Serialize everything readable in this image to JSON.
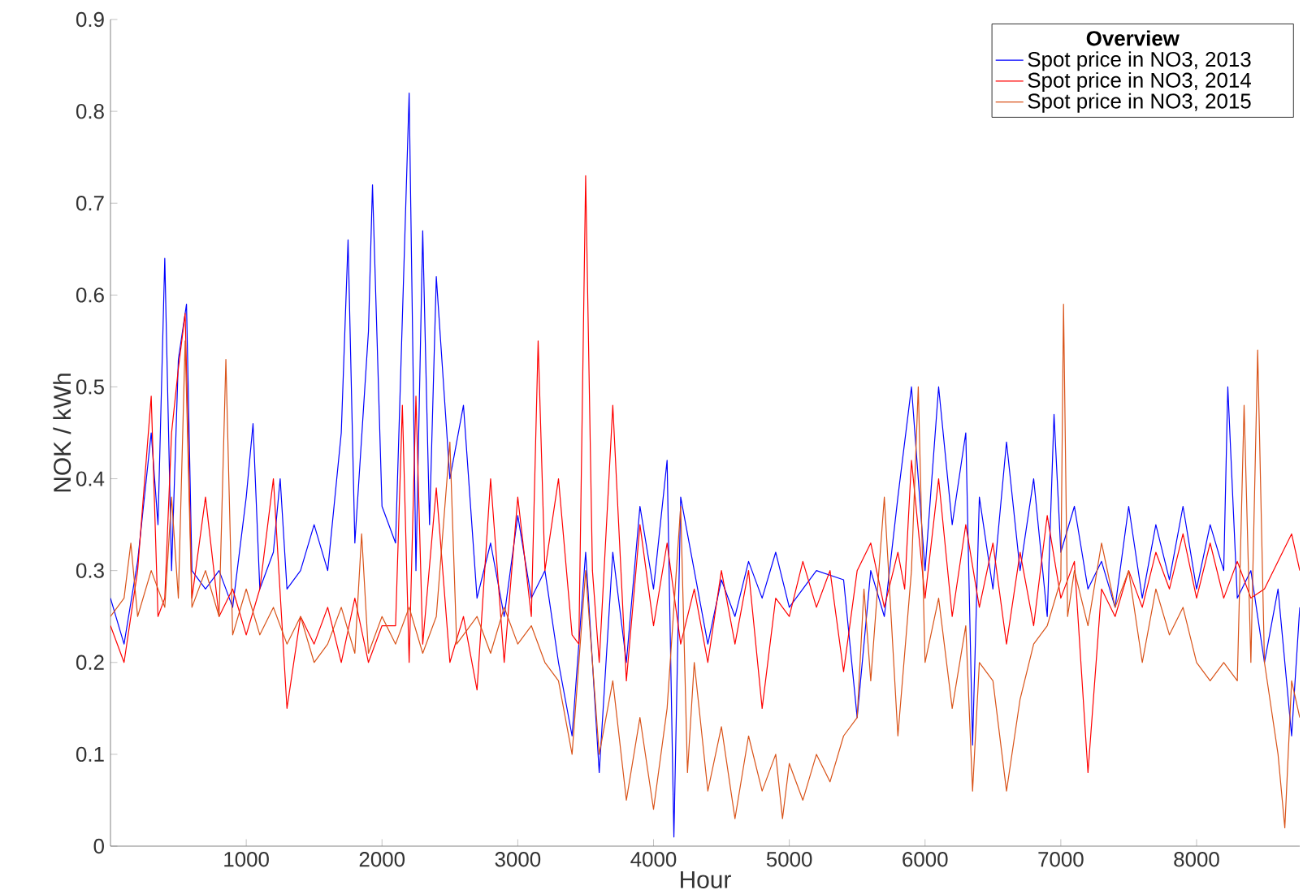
{
  "chart_data": {
    "type": "line",
    "xlabel": "Hour",
    "ylabel": "NOK / kWh",
    "legend_title": "Overview",
    "legend": "top right",
    "grid": false,
    "marker": "none",
    "line_style": "solid",
    "xlim": [
      0,
      8760
    ],
    "ylim": [
      0,
      0.9
    ],
    "xticks": [
      1000,
      2000,
      3000,
      4000,
      5000,
      6000,
      7000,
      8000
    ],
    "yticks": [
      0,
      0.1,
      0.2,
      0.3,
      0.4,
      0.5,
      0.6,
      0.7,
      0.8,
      0.9
    ],
    "series": [
      {
        "name": "Spot price in NO3, 2013",
        "color": "#0000ff",
        "x": [
          0,
          100,
          200,
          300,
          350,
          400,
          450,
          500,
          560,
          600,
          700,
          800,
          900,
          1000,
          1050,
          1100,
          1200,
          1250,
          1300,
          1400,
          1500,
          1600,
          1700,
          1750,
          1800,
          1900,
          1930,
          2000,
          2100,
          2200,
          2250,
          2300,
          2350,
          2400,
          2500,
          2600,
          2700,
          2800,
          2900,
          3000,
          3100,
          3200,
          3300,
          3400,
          3500,
          3600,
          3700,
          3800,
          3900,
          4000,
          4100,
          4150,
          4200,
          4300,
          4400,
          4500,
          4600,
          4700,
          4800,
          4900,
          5000,
          5200,
          5400,
          5500,
          5600,
          5700,
          5800,
          5900,
          6000,
          6100,
          6200,
          6300,
          6350,
          6400,
          6500,
          6600,
          6700,
          6800,
          6900,
          6950,
          7000,
          7100,
          7200,
          7300,
          7400,
          7500,
          7600,
          7700,
          7800,
          7900,
          8000,
          8100,
          8200,
          8230,
          8300,
          8400,
          8500,
          8600,
          8700,
          8760
        ],
        "values": [
          0.27,
          0.22,
          0.31,
          0.45,
          0.35,
          0.64,
          0.3,
          0.53,
          0.59,
          0.3,
          0.28,
          0.3,
          0.26,
          0.38,
          0.46,
          0.28,
          0.32,
          0.4,
          0.28,
          0.3,
          0.35,
          0.3,
          0.45,
          0.66,
          0.33,
          0.56,
          0.72,
          0.37,
          0.33,
          0.82,
          0.3,
          0.67,
          0.35,
          0.62,
          0.4,
          0.48,
          0.27,
          0.33,
          0.25,
          0.36,
          0.27,
          0.3,
          0.2,
          0.12,
          0.32,
          0.08,
          0.32,
          0.2,
          0.37,
          0.28,
          0.42,
          0.01,
          0.38,
          0.3,
          0.22,
          0.29,
          0.25,
          0.31,
          0.27,
          0.32,
          0.26,
          0.3,
          0.29,
          0.14,
          0.3,
          0.25,
          0.38,
          0.5,
          0.3,
          0.5,
          0.35,
          0.45,
          0.11,
          0.38,
          0.28,
          0.44,
          0.3,
          0.4,
          0.25,
          0.47,
          0.32,
          0.37,
          0.28,
          0.31,
          0.26,
          0.37,
          0.27,
          0.35,
          0.29,
          0.37,
          0.28,
          0.35,
          0.3,
          0.5,
          0.27,
          0.3,
          0.2,
          0.28,
          0.12,
          0.26
        ]
      },
      {
        "name": "Spot price in NO3, 2014",
        "color": "#ff0000",
        "x": [
          0,
          100,
          200,
          300,
          350,
          400,
          450,
          500,
          550,
          600,
          700,
          800,
          900,
          1000,
          1100,
          1200,
          1300,
          1400,
          1500,
          1600,
          1700,
          1800,
          1900,
          2000,
          2100,
          2150,
          2200,
          2250,
          2300,
          2400,
          2500,
          2600,
          2700,
          2800,
          2900,
          3000,
          3100,
          3150,
          3200,
          3300,
          3400,
          3450,
          3500,
          3550,
          3600,
          3700,
          3800,
          3900,
          4000,
          4100,
          4200,
          4300,
          4400,
          4500,
          4600,
          4700,
          4800,
          4900,
          5000,
          5100,
          5200,
          5300,
          5400,
          5500,
          5600,
          5700,
          5800,
          5850,
          5900,
          6000,
          6100,
          6200,
          6300,
          6400,
          6500,
          6600,
          6700,
          6800,
          6900,
          7000,
          7100,
          7200,
          7300,
          7400,
          7500,
          7600,
          7700,
          7800,
          7900,
          8000,
          8100,
          8200,
          8300,
          8400,
          8500,
          8600,
          8700,
          8760
        ],
        "values": [
          0.24,
          0.2,
          0.3,
          0.49,
          0.25,
          0.27,
          0.45,
          0.52,
          0.58,
          0.27,
          0.38,
          0.25,
          0.28,
          0.23,
          0.28,
          0.4,
          0.15,
          0.25,
          0.22,
          0.26,
          0.2,
          0.27,
          0.2,
          0.24,
          0.24,
          0.48,
          0.2,
          0.49,
          0.22,
          0.39,
          0.2,
          0.25,
          0.17,
          0.4,
          0.2,
          0.38,
          0.25,
          0.55,
          0.3,
          0.4,
          0.23,
          0.22,
          0.73,
          0.3,
          0.2,
          0.48,
          0.18,
          0.35,
          0.24,
          0.33,
          0.22,
          0.28,
          0.2,
          0.3,
          0.22,
          0.3,
          0.15,
          0.27,
          0.25,
          0.31,
          0.26,
          0.3,
          0.19,
          0.3,
          0.33,
          0.26,
          0.32,
          0.28,
          0.42,
          0.27,
          0.4,
          0.25,
          0.35,
          0.26,
          0.33,
          0.22,
          0.32,
          0.24,
          0.36,
          0.27,
          0.31,
          0.08,
          0.28,
          0.25,
          0.3,
          0.26,
          0.32,
          0.28,
          0.34,
          0.27,
          0.33,
          0.27,
          0.31,
          0.27,
          0.28,
          0.31,
          0.34,
          0.3
        ]
      },
      {
        "name": "Spot price in NO3, 2015",
        "color": "#d95319",
        "x": [
          0,
          100,
          150,
          200,
          300,
          400,
          450,
          500,
          550,
          600,
          700,
          800,
          850,
          900,
          1000,
          1100,
          1200,
          1300,
          1400,
          1500,
          1600,
          1700,
          1800,
          1850,
          1900,
          2000,
          2100,
          2200,
          2300,
          2400,
          2500,
          2550,
          2700,
          2800,
          2900,
          3000,
          3100,
          3200,
          3300,
          3400,
          3500,
          3600,
          3700,
          3800,
          3900,
          4000,
          4100,
          4200,
          4250,
          4300,
          4400,
          4500,
          4600,
          4700,
          4800,
          4900,
          4950,
          5000,
          5100,
          5200,
          5300,
          5400,
          5500,
          5550,
          5600,
          5700,
          5800,
          5900,
          5950,
          6000,
          6100,
          6200,
          6300,
          6350,
          6400,
          6500,
          6600,
          6700,
          6800,
          6900,
          7000,
          7020,
          7050,
          7100,
          7200,
          7300,
          7400,
          7500,
          7600,
          7700,
          7800,
          7900,
          8000,
          8100,
          8200,
          8300,
          8350,
          8400,
          8450,
          8500,
          8600,
          8650,
          8700,
          8760
        ],
        "values": [
          0.25,
          0.27,
          0.33,
          0.25,
          0.3,
          0.26,
          0.38,
          0.27,
          0.55,
          0.26,
          0.3,
          0.25,
          0.53,
          0.23,
          0.28,
          0.23,
          0.26,
          0.22,
          0.25,
          0.2,
          0.22,
          0.26,
          0.21,
          0.34,
          0.21,
          0.25,
          0.22,
          0.26,
          0.21,
          0.25,
          0.44,
          0.22,
          0.25,
          0.21,
          0.26,
          0.22,
          0.24,
          0.2,
          0.18,
          0.1,
          0.3,
          0.1,
          0.18,
          0.05,
          0.14,
          0.04,
          0.15,
          0.37,
          0.08,
          0.2,
          0.06,
          0.13,
          0.03,
          0.12,
          0.06,
          0.1,
          0.03,
          0.09,
          0.05,
          0.1,
          0.07,
          0.12,
          0.14,
          0.28,
          0.18,
          0.38,
          0.12,
          0.3,
          0.5,
          0.2,
          0.27,
          0.15,
          0.24,
          0.06,
          0.2,
          0.18,
          0.06,
          0.16,
          0.22,
          0.24,
          0.29,
          0.59,
          0.25,
          0.3,
          0.24,
          0.33,
          0.26,
          0.3,
          0.2,
          0.28,
          0.23,
          0.26,
          0.2,
          0.18,
          0.2,
          0.18,
          0.48,
          0.2,
          0.54,
          0.2,
          0.1,
          0.02,
          0.18,
          0.14
        ]
      }
    ]
  }
}
